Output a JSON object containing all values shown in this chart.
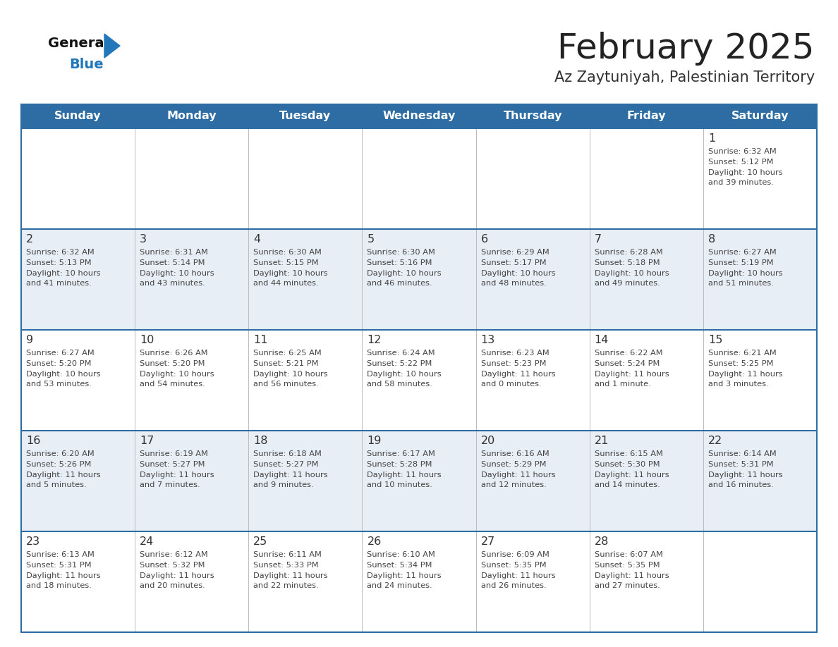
{
  "title": "February 2025",
  "subtitle": "Az Zaytuniyah, Palestinian Territory",
  "days_of_week": [
    "Sunday",
    "Monday",
    "Tuesday",
    "Wednesday",
    "Thursday",
    "Friday",
    "Saturday"
  ],
  "header_bg_color": "#2d6da3",
  "header_text_color": "#ffffff",
  "cell_bg_color": "#ffffff",
  "alt_cell_bg_color": "#e8eef5",
  "border_color": "#2d6da3",
  "day_num_color": "#333333",
  "cell_text_color": "#444444",
  "title_color": "#222222",
  "subtitle_color": "#333333",
  "logo_general_color": "#111111",
  "logo_blue_color": "#2277bb",
  "weeks": [
    [
      {
        "day": null,
        "info": null
      },
      {
        "day": null,
        "info": null
      },
      {
        "day": null,
        "info": null
      },
      {
        "day": null,
        "info": null
      },
      {
        "day": null,
        "info": null
      },
      {
        "day": null,
        "info": null
      },
      {
        "day": 1,
        "info": "Sunrise: 6:32 AM\nSunset: 5:12 PM\nDaylight: 10 hours\nand 39 minutes."
      }
    ],
    [
      {
        "day": 2,
        "info": "Sunrise: 6:32 AM\nSunset: 5:13 PM\nDaylight: 10 hours\nand 41 minutes."
      },
      {
        "day": 3,
        "info": "Sunrise: 6:31 AM\nSunset: 5:14 PM\nDaylight: 10 hours\nand 43 minutes."
      },
      {
        "day": 4,
        "info": "Sunrise: 6:30 AM\nSunset: 5:15 PM\nDaylight: 10 hours\nand 44 minutes."
      },
      {
        "day": 5,
        "info": "Sunrise: 6:30 AM\nSunset: 5:16 PM\nDaylight: 10 hours\nand 46 minutes."
      },
      {
        "day": 6,
        "info": "Sunrise: 6:29 AM\nSunset: 5:17 PM\nDaylight: 10 hours\nand 48 minutes."
      },
      {
        "day": 7,
        "info": "Sunrise: 6:28 AM\nSunset: 5:18 PM\nDaylight: 10 hours\nand 49 minutes."
      },
      {
        "day": 8,
        "info": "Sunrise: 6:27 AM\nSunset: 5:19 PM\nDaylight: 10 hours\nand 51 minutes."
      }
    ],
    [
      {
        "day": 9,
        "info": "Sunrise: 6:27 AM\nSunset: 5:20 PM\nDaylight: 10 hours\nand 53 minutes."
      },
      {
        "day": 10,
        "info": "Sunrise: 6:26 AM\nSunset: 5:20 PM\nDaylight: 10 hours\nand 54 minutes."
      },
      {
        "day": 11,
        "info": "Sunrise: 6:25 AM\nSunset: 5:21 PM\nDaylight: 10 hours\nand 56 minutes."
      },
      {
        "day": 12,
        "info": "Sunrise: 6:24 AM\nSunset: 5:22 PM\nDaylight: 10 hours\nand 58 minutes."
      },
      {
        "day": 13,
        "info": "Sunrise: 6:23 AM\nSunset: 5:23 PM\nDaylight: 11 hours\nand 0 minutes."
      },
      {
        "day": 14,
        "info": "Sunrise: 6:22 AM\nSunset: 5:24 PM\nDaylight: 11 hours\nand 1 minute."
      },
      {
        "day": 15,
        "info": "Sunrise: 6:21 AM\nSunset: 5:25 PM\nDaylight: 11 hours\nand 3 minutes."
      }
    ],
    [
      {
        "day": 16,
        "info": "Sunrise: 6:20 AM\nSunset: 5:26 PM\nDaylight: 11 hours\nand 5 minutes."
      },
      {
        "day": 17,
        "info": "Sunrise: 6:19 AM\nSunset: 5:27 PM\nDaylight: 11 hours\nand 7 minutes."
      },
      {
        "day": 18,
        "info": "Sunrise: 6:18 AM\nSunset: 5:27 PM\nDaylight: 11 hours\nand 9 minutes."
      },
      {
        "day": 19,
        "info": "Sunrise: 6:17 AM\nSunset: 5:28 PM\nDaylight: 11 hours\nand 10 minutes."
      },
      {
        "day": 20,
        "info": "Sunrise: 6:16 AM\nSunset: 5:29 PM\nDaylight: 11 hours\nand 12 minutes."
      },
      {
        "day": 21,
        "info": "Sunrise: 6:15 AM\nSunset: 5:30 PM\nDaylight: 11 hours\nand 14 minutes."
      },
      {
        "day": 22,
        "info": "Sunrise: 6:14 AM\nSunset: 5:31 PM\nDaylight: 11 hours\nand 16 minutes."
      }
    ],
    [
      {
        "day": 23,
        "info": "Sunrise: 6:13 AM\nSunset: 5:31 PM\nDaylight: 11 hours\nand 18 minutes."
      },
      {
        "day": 24,
        "info": "Sunrise: 6:12 AM\nSunset: 5:32 PM\nDaylight: 11 hours\nand 20 minutes."
      },
      {
        "day": 25,
        "info": "Sunrise: 6:11 AM\nSunset: 5:33 PM\nDaylight: 11 hours\nand 22 minutes."
      },
      {
        "day": 26,
        "info": "Sunrise: 6:10 AM\nSunset: 5:34 PM\nDaylight: 11 hours\nand 24 minutes."
      },
      {
        "day": 27,
        "info": "Sunrise: 6:09 AM\nSunset: 5:35 PM\nDaylight: 11 hours\nand 26 minutes."
      },
      {
        "day": 28,
        "info": "Sunrise: 6:07 AM\nSunset: 5:35 PM\nDaylight: 11 hours\nand 27 minutes."
      },
      {
        "day": null,
        "info": null
      }
    ]
  ]
}
